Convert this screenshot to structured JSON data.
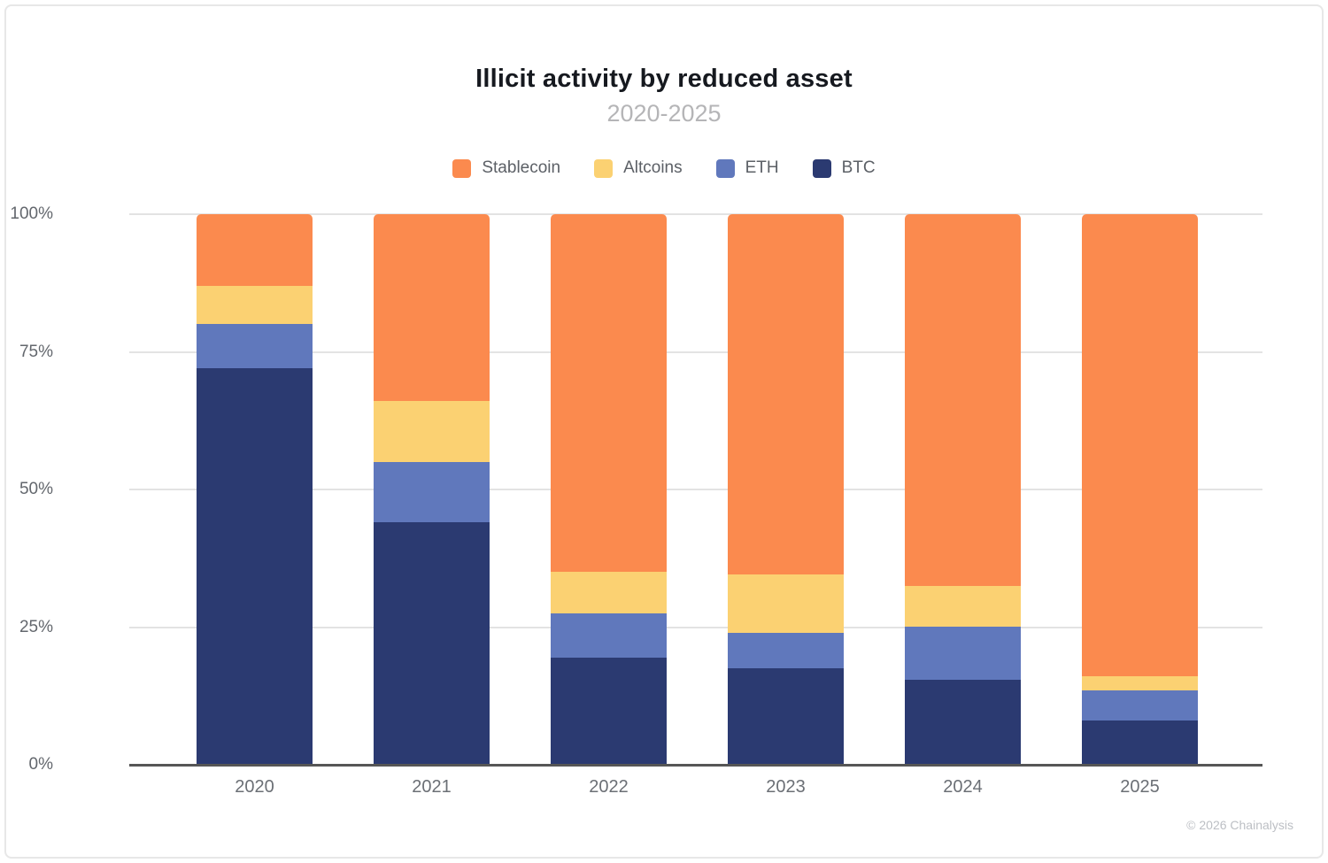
{
  "card": {
    "title": "Illicit activity by reduced asset",
    "subtitle": "2020-2025",
    "footer": "© 2026 Chainalysis"
  },
  "chart_data": {
    "type": "bar",
    "stacked": true,
    "title": "Illicit activity by reduced asset",
    "subtitle": "2020-2025",
    "xlabel": "",
    "ylabel": "",
    "categories": [
      "2020",
      "2021",
      "2022",
      "2023",
      "2024",
      "2025"
    ],
    "series": [
      {
        "name": "BTC",
        "color": "#2b3a71",
        "values": [
          72,
          44,
          19.5,
          17.5,
          15.5,
          8
        ]
      },
      {
        "name": "ETH",
        "color": "#6078bc",
        "values": [
          8,
          11,
          8,
          6.5,
          9.5,
          5.5
        ]
      },
      {
        "name": "Altcoins",
        "color": "#fbd172",
        "values": [
          7,
          11,
          7.5,
          10.5,
          7.5,
          2.5
        ]
      },
      {
        "name": "Stablecoin",
        "color": "#fb8a4e",
        "values": [
          13,
          34,
          65,
          65.5,
          67.5,
          84
        ]
      }
    ],
    "legend_order": [
      "Stablecoin",
      "Altcoins",
      "ETH",
      "BTC"
    ],
    "legend_position": "top",
    "y_ticks": [
      {
        "label": "0%",
        "value": 0
      },
      {
        "label": "25%",
        "value": 25
      },
      {
        "label": "50%",
        "value": 50
      },
      {
        "label": "75%",
        "value": 75
      },
      {
        "label": "100%",
        "value": 100
      }
    ],
    "ylim": [
      0,
      100
    ],
    "grid": true
  }
}
